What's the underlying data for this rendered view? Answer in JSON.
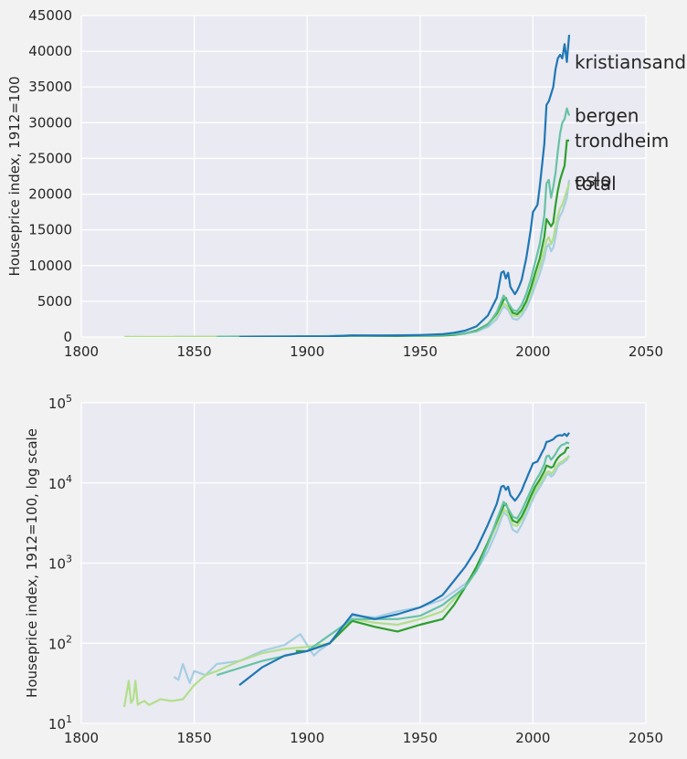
{
  "chart_data": [
    {
      "type": "line",
      "title": "",
      "xlabel": "",
      "ylabel": "Houseprice index, 1912=100",
      "xlim": [
        1800,
        2050
      ],
      "ylim": [
        0,
        45000
      ],
      "yscale": "linear",
      "grid": true,
      "xticks": [
        "1800",
        "1850",
        "1900",
        "1950",
        "2000",
        "2050"
      ],
      "yticks": [
        "0",
        "5000",
        "10000",
        "15000",
        "20000",
        "25000",
        "30000",
        "35000",
        "40000",
        "45000"
      ],
      "series": [
        {
          "name": "kristiansand",
          "color": "#1f77b4",
          "x": [
            1870,
            1880,
            1890,
            1900,
            1910,
            1920,
            1930,
            1940,
            1950,
            1955,
            1960,
            1965,
            1970,
            1975,
            1980,
            1984,
            1986,
            1987,
            1988,
            1989,
            1990,
            1991,
            1992,
            1993,
            1994,
            1995,
            1996,
            1997,
            1998,
            1999,
            2000,
            2001,
            2002,
            2003,
            2004,
            2005,
            2006,
            2007,
            2008,
            2009,
            2010,
            2011,
            2012,
            2013,
            2014,
            2015,
            2016
          ],
          "y": [
            30,
            50,
            70,
            80,
            100,
            230,
            200,
            230,
            280,
            330,
            400,
            600,
            900,
            1500,
            3000,
            5500,
            9000,
            9200,
            8200,
            9000,
            7000,
            6500,
            6000,
            6500,
            7200,
            8000,
            9500,
            11000,
            13000,
            15000,
            17500,
            18000,
            18500,
            21000,
            24000,
            27000,
            32500,
            33000,
            34000,
            35000,
            37500,
            39000,
            39500,
            39000,
            41000,
            38500,
            42300
          ]
        },
        {
          "name": "bergen",
          "color": "#66c2a5",
          "x": [
            1860,
            1880,
            1900,
            1920,
            1940,
            1950,
            1960,
            1970,
            1975,
            1980,
            1984,
            1987,
            1989,
            1991,
            1993,
            1995,
            1997,
            1999,
            2001,
            2003,
            2005,
            2006,
            2007,
            2008,
            2009,
            2010,
            2011,
            2012,
            2013,
            2014,
            2015,
            2016
          ],
          "y": [
            40,
            60,
            80,
            200,
            200,
            220,
            300,
            500,
            800,
            1700,
            3500,
            5800,
            4800,
            3800,
            3600,
            4500,
            6000,
            8000,
            10500,
            13000,
            17000,
            21500,
            22000,
            19500,
            21000,
            23000,
            26000,
            28500,
            30000,
            30500,
            32000,
            31000
          ]
        },
        {
          "name": "trondheim",
          "color": "#2ca02c",
          "x": [
            1895,
            1900,
            1910,
            1920,
            1930,
            1940,
            1950,
            1960,
            1965,
            1970,
            1975,
            1980,
            1984,
            1987,
            1988,
            1989,
            1991,
            1993,
            1995,
            1997,
            1999,
            2001,
            2003,
            2005,
            2006,
            2007,
            2008,
            2009,
            2010,
            2011,
            2012,
            2013,
            2014,
            2015,
            2016
          ],
          "y": [
            80,
            80,
            100,
            190,
            160,
            140,
            170,
            200,
            300,
            500,
            900,
            1800,
            3300,
            5200,
            5500,
            4700,
            3400,
            3200,
            3800,
            5000,
            6800,
            9000,
            11000,
            14000,
            16500,
            16000,
            15500,
            16000,
            18500,
            20500,
            22000,
            23000,
            24000,
            27500,
            27500
          ]
        },
        {
          "name": "total",
          "color": "#b2df8a",
          "x": [
            1819,
            1821,
            1822,
            1823,
            1824,
            1825,
            1826,
            1828,
            1830,
            1835,
            1840,
            1845,
            1850,
            1855,
            1860,
            1870,
            1880,
            1890,
            1900,
            1910,
            1920,
            1930,
            1940,
            1950,
            1960,
            1970,
            1975,
            1980,
            1984,
            1987,
            1989,
            1991,
            1993,
            1995,
            1997,
            1999,
            2001,
            2003,
            2005,
            2006,
            2007,
            2008,
            2009,
            2010,
            2011,
            2012,
            2013,
            2014,
            2015,
            2016
          ],
          "y": [
            16,
            34,
            18,
            20,
            34,
            17,
            18,
            19,
            17,
            20,
            19,
            20,
            30,
            40,
            45,
            60,
            75,
            85,
            90,
            100,
            200,
            180,
            170,
            200,
            250,
            500,
            900,
            1700,
            3000,
            4700,
            4200,
            3000,
            2900,
            3500,
            4700,
            6200,
            8000,
            9800,
            12200,
            13500,
            14000,
            13000,
            13800,
            15500,
            17000,
            18000,
            18500,
            19500,
            20500,
            21500
          ]
        },
        {
          "name": "oslo",
          "color": "#a6cee3",
          "x": [
            1841,
            1843,
            1845,
            1847,
            1848,
            1850,
            1855,
            1860,
            1870,
            1880,
            1890,
            1897,
            1900,
            1903,
            1905,
            1910,
            1920,
            1930,
            1940,
            1950,
            1960,
            1970,
            1975,
            1980,
            1984,
            1987,
            1989,
            1991,
            1993,
            1995,
            1997,
            1999,
            2001,
            2003,
            2005,
            2006,
            2007,
            2008,
            2009,
            2010,
            2011,
            2012,
            2013,
            2014,
            2015,
            2016
          ],
          "y": [
            38,
            35,
            55,
            38,
            32,
            45,
            40,
            55,
            60,
            80,
            95,
            130,
            95,
            70,
            80,
            100,
            220,
            210,
            250,
            280,
            350,
            550,
            800,
            1400,
            2500,
            4300,
            3800,
            2600,
            2400,
            3000,
            4000,
            5400,
            7200,
            8800,
            11000,
            12500,
            13000,
            12000,
            12500,
            14000,
            16000,
            17000,
            17500,
            18500,
            19500,
            22000
          ]
        }
      ]
    },
    {
      "type": "line",
      "title": "",
      "xlabel": "",
      "ylabel": "Houseprice index, 1912=100, log scale",
      "xlim": [
        1800,
        2050
      ],
      "ylim": [
        10,
        100000
      ],
      "yscale": "log",
      "grid": true,
      "xticks": [
        "1800",
        "1850",
        "1900",
        "1950",
        "2000",
        "2050"
      ],
      "ytick_values": [
        10,
        100,
        1000,
        10000,
        100000
      ],
      "ytick_exponents": [
        "1",
        "2",
        "3",
        "4",
        "5"
      ],
      "ytick_base": "10",
      "series_ref": "same as top chart"
    }
  ]
}
